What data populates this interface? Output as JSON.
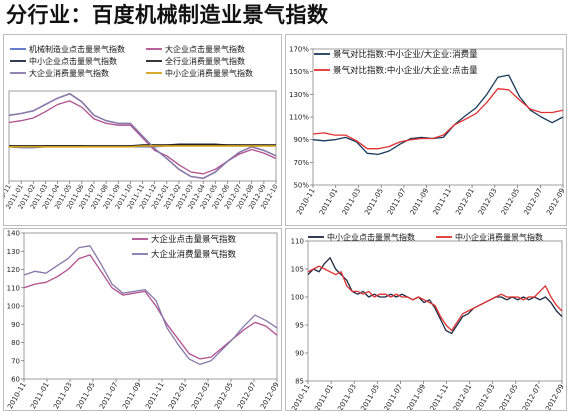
{
  "title": "分行业：百度机械制造业景气指数",
  "chart_data": [
    {
      "id": "c1",
      "type": "line",
      "title": "",
      "xlabel": "",
      "ylabel": "",
      "ylim": [
        0,
        100
      ],
      "grid": false,
      "legend": "top",
      "x_ticks": [
        "2010-11",
        "2011-01",
        "2011-02",
        "2011-03",
        "2011-04",
        "2011-05",
        "2011-06",
        "2011-07",
        "2011-08",
        "2011-09",
        "2011-10",
        "2011-11",
        "2011-12",
        "2012-01",
        "2012-02",
        "2012-03",
        "2012-04",
        "2012-05",
        "2012-06",
        "2012-07",
        "2012-08",
        "2012-09",
        "2012-10"
      ],
      "y_ticks": [],
      "x_start": 0,
      "x_end": 22,
      "series": [
        {
          "name": "机械制造业点击量景气指数",
          "color": "#5470c6",
          "x": [
            0,
            1,
            2,
            3,
            4,
            5,
            6,
            7,
            8,
            9,
            10,
            11,
            12,
            13,
            14,
            15,
            16,
            17,
            18,
            19,
            20,
            21,
            22
          ],
          "values": [
            38,
            37,
            37,
            38,
            38,
            38,
            38,
            38,
            38,
            38,
            38,
            38,
            38,
            39,
            40,
            40,
            41,
            40,
            40,
            40,
            39,
            39,
            40
          ]
        },
        {
          "name": "大企业点击量景气指数",
          "color": "#b0508f",
          "x": [
            0,
            1,
            2,
            3,
            4,
            5,
            6,
            7,
            8,
            9,
            10,
            11,
            12,
            13,
            14,
            15,
            16,
            17,
            18,
            19,
            20,
            21,
            22
          ],
          "values": [
            65,
            67,
            70,
            77,
            85,
            89,
            82,
            69,
            64,
            62,
            62,
            48,
            34,
            28,
            18,
            10,
            8,
            13,
            22,
            30,
            35,
            31,
            25
          ]
        },
        {
          "name": "中小企业点击量景气指数",
          "color": "#1a2a44",
          "x": [
            0,
            1,
            2,
            3,
            4,
            5,
            6,
            7,
            8,
            9,
            10,
            11,
            12,
            13,
            14,
            15,
            16,
            17,
            18,
            19,
            20,
            21,
            22
          ],
          "values": [
            38,
            38,
            38,
            39,
            39,
            39,
            39,
            38,
            38,
            38,
            38,
            40,
            40,
            40,
            41,
            41,
            41,
            41,
            40,
            40,
            40,
            40,
            40
          ]
        },
        {
          "name": "全行业消费量景气指数",
          "color": "#222222",
          "x": [
            0,
            1,
            2,
            3,
            4,
            5,
            6,
            7,
            8,
            9,
            10,
            11,
            12,
            13,
            14,
            15,
            16,
            17,
            18,
            19,
            20,
            21,
            22
          ],
          "values": [
            39,
            39,
            39,
            39,
            39,
            39,
            39,
            39,
            39,
            39,
            39,
            40,
            40,
            40,
            40,
            40,
            40,
            40,
            40,
            40,
            40,
            40,
            40
          ]
        },
        {
          "name": "大企业消费量景气指数",
          "color": "#8877aa",
          "x": [
            0,
            1,
            2,
            3,
            4,
            5,
            6,
            7,
            8,
            9,
            10,
            11,
            12,
            13,
            14,
            15,
            16,
            17,
            18,
            19,
            20,
            21,
            22
          ],
          "values": [
            73,
            75,
            78,
            85,
            92,
            97,
            88,
            73,
            67,
            64,
            64,
            50,
            36,
            25,
            13,
            5,
            3,
            10,
            22,
            32,
            38,
            34,
            28
          ]
        },
        {
          "name": "中小企业消费量景气指数",
          "color": "#d4a017",
          "x": [
            0,
            1,
            2,
            3,
            4,
            5,
            6,
            7,
            8,
            9,
            10,
            11,
            12,
            13,
            14,
            15,
            16,
            17,
            18,
            19,
            20,
            21,
            22
          ],
          "values": [
            38,
            38,
            38,
            38,
            38,
            38,
            38,
            38,
            38,
            38,
            38,
            39,
            39,
            39,
            39,
            39,
            39,
            39,
            39,
            39,
            39,
            39,
            39
          ]
        }
      ]
    },
    {
      "id": "c2",
      "type": "line",
      "title": "",
      "xlabel": "",
      "ylabel": "",
      "ylim": [
        50,
        170
      ],
      "grid": false,
      "legend": "top-left",
      "x_ticks": [
        "2010-11",
        "2011-01",
        "2011-03",
        "2011-05",
        "2011-07",
        "2011-09",
        "2011-11",
        "2012-01",
        "2012-03",
        "2012-05",
        "2012-07",
        "2012-09"
      ],
      "y_ticks": [
        "50%",
        "70%",
        "90%",
        "110%",
        "130%",
        "150%",
        "170%"
      ],
      "y_tick_values": [
        50,
        70,
        90,
        110,
        130,
        150,
        170
      ],
      "x_start": 0,
      "x_end": 23,
      "series": [
        {
          "name": "景气对比指数:中小企业/大企业:消费量",
          "color": "#1a3a5c",
          "x": [
            0,
            1,
            2,
            3,
            4,
            5,
            6,
            7,
            8,
            9,
            10,
            11,
            12,
            13,
            14,
            15,
            16,
            17,
            18,
            19,
            20,
            21,
            22,
            23
          ],
          "values": [
            90,
            89,
            90,
            92,
            88,
            78,
            77,
            80,
            86,
            91,
            92,
            91,
            92,
            103,
            111,
            118,
            130,
            145,
            147,
            128,
            116,
            110,
            105,
            110
          ]
        },
        {
          "name": "景气对比指数:中小企业/大企业:点击量",
          "color": "#e03030",
          "x": [
            0,
            1,
            2,
            3,
            4,
            5,
            6,
            7,
            8,
            9,
            10,
            11,
            12,
            13,
            14,
            15,
            16,
            17,
            18,
            19,
            20,
            21,
            22,
            23
          ],
          "values": [
            95,
            96,
            94,
            94,
            89,
            82,
            82,
            84,
            88,
            90,
            91,
            91,
            94,
            103,
            108,
            113,
            123,
            135,
            134,
            125,
            117,
            114,
            114,
            116
          ]
        }
      ]
    },
    {
      "id": "c3",
      "type": "line",
      "title": "",
      "xlabel": "",
      "ylabel": "",
      "ylim": [
        60,
        140
      ],
      "grid": false,
      "legend": "top-right",
      "x_ticks": [
        "2010-11",
        "2011-01",
        "2011-03",
        "2011-05",
        "2011-07",
        "2011-09",
        "2011-11",
        "2012-01",
        "2012-03",
        "2012-05",
        "2012-07",
        "2012-09"
      ],
      "y_ticks": [
        "60",
        "70",
        "80",
        "90",
        "100",
        "110",
        "120",
        "130",
        "140"
      ],
      "y_tick_values": [
        60,
        70,
        80,
        90,
        100,
        110,
        120,
        130,
        140
      ],
      "x_start": 0,
      "x_end": 23,
      "series": [
        {
          "name": "大企业点击量景气指数",
          "color": "#b0508f",
          "x": [
            0,
            1,
            2,
            3,
            4,
            5,
            6,
            7,
            8,
            9,
            10,
            11,
            12,
            13,
            14,
            15,
            16,
            17,
            18,
            19,
            20,
            21,
            22,
            23
          ],
          "values": [
            110,
            112,
            113,
            116,
            120,
            126,
            128,
            119,
            110,
            106,
            107,
            108,
            100,
            90,
            82,
            74,
            71,
            72,
            77,
            82,
            87,
            91,
            89,
            84
          ]
        },
        {
          "name": "大企业消费量景气指数",
          "color": "#8877aa",
          "x": [
            0,
            1,
            2,
            3,
            4,
            5,
            6,
            7,
            8,
            9,
            10,
            11,
            12,
            13,
            14,
            15,
            16,
            17,
            18,
            19,
            20,
            21,
            22,
            23
          ],
          "values": [
            117,
            119,
            118,
            122,
            126,
            132,
            133,
            123,
            112,
            107,
            108,
            109,
            103,
            88,
            79,
            71,
            68,
            70,
            76,
            82,
            89,
            95,
            92,
            88
          ]
        }
      ]
    },
    {
      "id": "c4",
      "type": "line",
      "title": "",
      "xlabel": "",
      "ylabel": "",
      "ylim": [
        85,
        110
      ],
      "grid": false,
      "legend": "top",
      "x_ticks": [
        "2010-11",
        "2011-01",
        "2011-03",
        "2011-05",
        "2011-07",
        "2011-09",
        "2011-11",
        "2012-01",
        "2012-03",
        "2012-05",
        "2012-07",
        "2012-09"
      ],
      "y_ticks": [
        "85",
        "90",
        "95",
        "100",
        "105",
        "110"
      ],
      "y_tick_values": [
        85,
        90,
        95,
        100,
        105,
        110
      ],
      "x_start": 0,
      "x_end": 23,
      "series": [
        {
          "name": "中小企业点击量景气指数",
          "color": "#1a2a44",
          "x": [
            0,
            0.5,
            1,
            1.5,
            2,
            2.5,
            3,
            3.5,
            4,
            4.5,
            5,
            5.5,
            6,
            6.5,
            7,
            7.5,
            8,
            8.5,
            9,
            9.5,
            10,
            10.5,
            11,
            11.5,
            12,
            12.5,
            13,
            13.5,
            14,
            14.5,
            15,
            15.5,
            16,
            16.5,
            17,
            17.5,
            18,
            18.5,
            19,
            19.5,
            20,
            20.5,
            21,
            21.5,
            22,
            22.5,
            23
          ],
          "values": [
            104,
            105,
            104.5,
            106,
            107,
            105,
            104,
            103,
            101,
            100.5,
            101,
            100,
            100.5,
            100,
            100,
            100.5,
            100,
            100.5,
            100,
            99.5,
            100,
            99,
            99.5,
            98,
            96,
            94,
            93.5,
            95,
            96.5,
            97,
            98,
            98.5,
            99,
            99.5,
            100,
            100,
            99.5,
            100,
            99.5,
            100,
            99.5,
            100,
            99.5,
            100,
            99,
            97.5,
            96.5
          ]
        },
        {
          "name": "中小企业消费量景气指数",
          "color": "#e03030",
          "x": [
            0,
            0.5,
            1,
            1.5,
            2,
            2.5,
            3,
            3.5,
            4,
            4.5,
            5,
            5.5,
            6,
            6.5,
            7,
            7.5,
            8,
            8.5,
            9,
            9.5,
            10,
            10.5,
            11,
            11.5,
            12,
            12.5,
            13,
            13.5,
            14,
            14.5,
            15,
            15.5,
            16,
            16.5,
            17,
            17.5,
            18,
            18.5,
            19,
            19.5,
            20,
            20.5,
            21,
            21.5,
            22,
            22.5,
            23
          ],
          "values": [
            104.5,
            105,
            105.5,
            105,
            104.5,
            104,
            104.5,
            102,
            101,
            101,
            100.5,
            101,
            100,
            100.5,
            100.5,
            100,
            100.5,
            100,
            100,
            99.5,
            100,
            99.5,
            99,
            98.5,
            96.5,
            95,
            94,
            95.5,
            97,
            97.5,
            98,
            98.5,
            99,
            99.5,
            100,
            100.5,
            100,
            100,
            100,
            99.5,
            100,
            100,
            101,
            102,
            100,
            98.5,
            97.5
          ]
        }
      ]
    }
  ]
}
